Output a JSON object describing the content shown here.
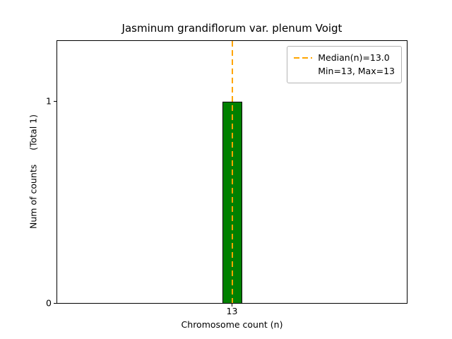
{
  "chart_data": {
    "type": "bar",
    "title": "Jasminum grandiflorum var. plenum Voigt",
    "xlabel": "Chromosome count (n)",
    "ylabel": "Num of counts     (Total 1)",
    "categories": [
      "13"
    ],
    "values": [
      1
    ],
    "ylim": [
      0,
      1.3
    ],
    "yticks": [
      0,
      1
    ],
    "median": 13.0,
    "min": 13,
    "max": 13,
    "total": 1,
    "legend": [
      "Median(n)=13.0",
      "Min=13, Max=13"
    ],
    "legend_position": "upper right",
    "grid": false,
    "bar_color": "#008000",
    "bar_edge_color": "#000000",
    "median_line_color": "#ffa500",
    "axes_edge_color": "#000000",
    "background_color": "#ffffff"
  }
}
